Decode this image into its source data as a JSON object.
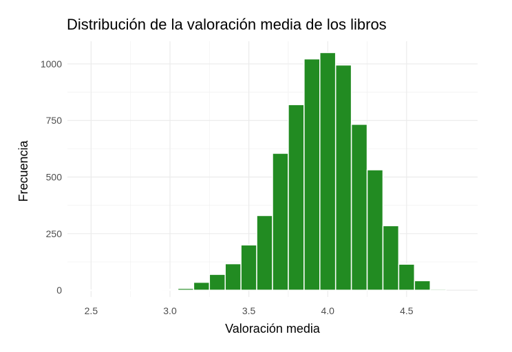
{
  "chart_data": {
    "type": "bar",
    "title": "Distribución de la valoración media de los libros",
    "xlabel": "Valoración media",
    "ylabel": "Frecuencia",
    "bin_width": 0.1,
    "bins": [
      2.4,
      2.5,
      2.6,
      2.7,
      2.8,
      2.9,
      3.0,
      3.1,
      3.2,
      3.3,
      3.4,
      3.5,
      3.6,
      3.7,
      3.8,
      3.9,
      4.0,
      4.1,
      4.2,
      4.3,
      4.4,
      4.5,
      4.6,
      4.7
    ],
    "values": [
      1,
      1,
      0,
      0,
      1,
      1,
      4,
      8,
      35,
      70,
      117,
      200,
      330,
      605,
      820,
      1022,
      1050,
      995,
      733,
      532,
      285,
      115,
      42,
      5
    ],
    "xlim": [
      2.35,
      4.95
    ],
    "ylim": [
      -30,
      1100
    ],
    "x_ticks": [
      2.5,
      3.0,
      3.5,
      4.0,
      4.5
    ],
    "x_tick_labels": [
      "2.5",
      "3.0",
      "3.5",
      "4.0",
      "4.5"
    ],
    "y_ticks": [
      0,
      250,
      500,
      750,
      1000
    ],
    "y_tick_labels": [
      "0",
      "250",
      "500",
      "750",
      "1000"
    ],
    "grid": true,
    "bar_color": "#228B22",
    "bar_outline": "#ffffff"
  }
}
